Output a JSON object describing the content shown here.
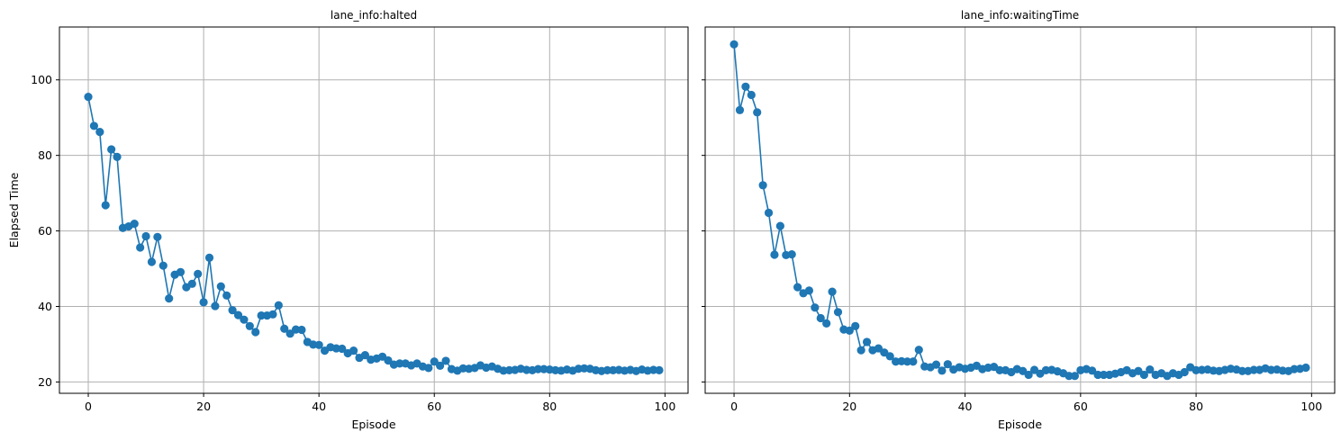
{
  "chart_data": [
    {
      "type": "line",
      "title": "lane_info:halted",
      "xlabel": "Episode",
      "ylabel": "Elapsed Time",
      "xlim": [
        -5,
        104
      ],
      "ylim": [
        17,
        114
      ],
      "xticks": [
        0,
        20,
        40,
        60,
        80,
        100
      ],
      "yticks": [
        20,
        40,
        60,
        80,
        100
      ],
      "grid": true,
      "marker": "circle",
      "color": "#1f77b4",
      "x": [
        0,
        1,
        2,
        3,
        4,
        5,
        6,
        7,
        8,
        9,
        10,
        11,
        12,
        13,
        14,
        15,
        16,
        17,
        18,
        19,
        20,
        21,
        22,
        23,
        24,
        25,
        26,
        27,
        28,
        29,
        30,
        31,
        32,
        33,
        34,
        35,
        36,
        37,
        38,
        39,
        40,
        41,
        42,
        43,
        44,
        45,
        46,
        47,
        48,
        49,
        50,
        51,
        52,
        53,
        54,
        55,
        56,
        57,
        58,
        59,
        60,
        61,
        62,
        63,
        64,
        65,
        66,
        67,
        68,
        69,
        70,
        71,
        72,
        73,
        74,
        75,
        76,
        77,
        78,
        79,
        80,
        81,
        82,
        83,
        84,
        85,
        86,
        87,
        88,
        89,
        90,
        91,
        92,
        93,
        94,
        95,
        96,
        97,
        98,
        99
      ],
      "y": [
        95.5,
        87.8,
        86.2,
        66.8,
        81.6,
        79.6,
        60.8,
        61.2,
        61.9,
        55.6,
        58.6,
        51.8,
        58.4,
        50.8,
        42.1,
        48.4,
        49.1,
        45.1,
        46.0,
        48.6,
        41.1,
        52.9,
        40.1,
        45.3,
        42.9,
        39.0,
        37.7,
        36.5,
        34.8,
        33.2,
        37.6,
        37.6,
        37.9,
        40.3,
        34.1,
        32.8,
        33.9,
        33.8,
        30.6,
        29.9,
        29.8,
        28.3,
        29.2,
        28.9,
        28.8,
        27.6,
        28.3,
        26.4,
        27.1,
        25.9,
        26.2,
        26.7,
        25.7,
        24.6,
        24.9,
        24.9,
        24.4,
        24.9,
        24.1,
        23.7,
        25.4,
        24.3,
        25.6,
        23.4,
        23.0,
        23.6,
        23.5,
        23.7,
        24.4,
        23.8,
        24.1,
        23.5,
        23.0,
        23.1,
        23.2,
        23.5,
        23.2,
        23.1,
        23.4,
        23.4,
        23.3,
        23.1,
        23.0,
        23.3,
        23.0,
        23.5,
        23.6,
        23.5,
        23.1,
        22.9,
        23.1,
        23.1,
        23.2,
        23.0,
        23.2,
        22.9,
        23.3,
        23.0,
        23.2,
        23.1
      ]
    },
    {
      "type": "line",
      "title": "lane_info:waitingTime",
      "xlabel": "Episode",
      "ylabel": "",
      "xlim": [
        -5,
        104
      ],
      "ylim": [
        17,
        114
      ],
      "xticks": [
        0,
        20,
        40,
        60,
        80,
        100
      ],
      "yticks": [
        20,
        40,
        60,
        80,
        100
      ],
      "grid": true,
      "marker": "circle",
      "color": "#1f77b4",
      "x": [
        0,
        1,
        2,
        3,
        4,
        5,
        6,
        7,
        8,
        9,
        10,
        11,
        12,
        13,
        14,
        15,
        16,
        17,
        18,
        19,
        20,
        21,
        22,
        23,
        24,
        25,
        26,
        27,
        28,
        29,
        30,
        31,
        32,
        33,
        34,
        35,
        36,
        37,
        38,
        39,
        40,
        41,
        42,
        43,
        44,
        45,
        46,
        47,
        48,
        49,
        50,
        51,
        52,
        53,
        54,
        55,
        56,
        57,
        58,
        59,
        60,
        61,
        62,
        63,
        64,
        65,
        66,
        67,
        68,
        69,
        70,
        71,
        72,
        73,
        74,
        75,
        76,
        77,
        78,
        79,
        80,
        81,
        82,
        83,
        84,
        85,
        86,
        87,
        88,
        89,
        90,
        91,
        92,
        93,
        94,
        95,
        96,
        97,
        98,
        99
      ],
      "y": [
        109.4,
        92.0,
        98.2,
        96.0,
        91.4,
        72.1,
        64.8,
        53.7,
        61.3,
        53.6,
        53.8,
        45.1,
        43.5,
        44.2,
        39.7,
        36.9,
        35.5,
        43.9,
        38.5,
        33.9,
        33.6,
        34.8,
        28.4,
        30.6,
        28.4,
        28.9,
        27.8,
        26.8,
        25.4,
        25.5,
        25.4,
        25.4,
        28.5,
        24.1,
        23.9,
        24.6,
        23.0,
        24.7,
        23.3,
        23.9,
        23.5,
        23.8,
        24.3,
        23.4,
        23.8,
        24.0,
        23.1,
        23.1,
        22.6,
        23.4,
        22.9,
        21.9,
        23.2,
        22.2,
        23.1,
        23.2,
        22.8,
        22.3,
        21.6,
        21.6,
        23.1,
        23.4,
        23.0,
        21.9,
        21.9,
        21.9,
        22.2,
        22.6,
        23.1,
        22.3,
        22.9,
        21.9,
        23.3,
        21.9,
        22.3,
        21.6,
        22.3,
        21.9,
        22.6,
        23.9,
        23.1,
        23.2,
        23.3,
        23.0,
        22.9,
        23.2,
        23.5,
        23.3,
        22.9,
        22.9,
        23.2,
        23.2,
        23.6,
        23.2,
        23.3,
        23.0,
        22.9,
        23.4,
        23.5,
        23.8
      ]
    }
  ]
}
